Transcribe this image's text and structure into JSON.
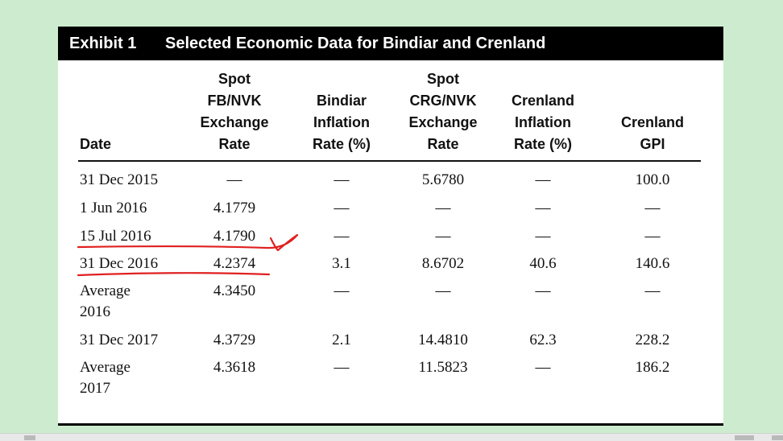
{
  "exhibit": {
    "label": "Exhibit 1",
    "title": "Selected Economic Data for Bindiar and Crenland"
  },
  "columns": [
    "Date",
    "Spot\nFB/NVK\nExchange\nRate",
    "Bindiar\nInflation\nRate (%)",
    "Spot\nCRG/NVK\nExchange\nRate",
    "Crenland\nInflation\nRate (%)",
    "Crenland\nGPI"
  ],
  "rows": [
    [
      "31 Dec 2015",
      "—",
      "—",
      "5.6780",
      "—",
      "100.0"
    ],
    [
      "1 Jun 2016",
      "4.1779",
      "—",
      "—",
      "—",
      "—"
    ],
    [
      "15 Jul 2016",
      "4.1790",
      "—",
      "—",
      "—",
      "—"
    ],
    [
      "31 Dec 2016",
      "4.2374",
      "3.1",
      "8.6702",
      "40.6",
      "140.6"
    ],
    [
      "Average\n2016",
      "4.3450",
      "—",
      "—",
      "—",
      "—"
    ],
    [
      "31 Dec 2017",
      "4.3729",
      "2.1",
      "14.4810",
      "62.3",
      "228.2"
    ],
    [
      "Average\n2017",
      "4.3618",
      "—",
      "11.5823",
      "—",
      "186.2"
    ]
  ],
  "colors": {
    "background": "#cdeccf",
    "title_bar": "#000000",
    "annotation": "#e02020"
  }
}
